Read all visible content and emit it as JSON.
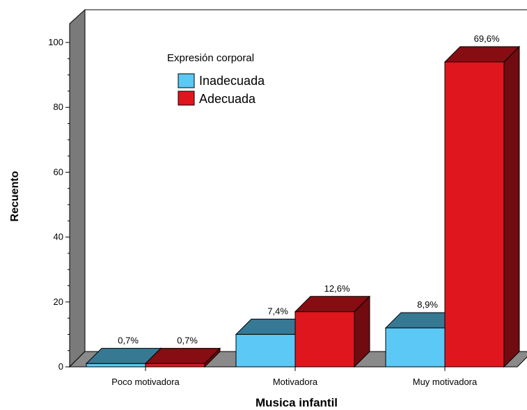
{
  "chart_data": {
    "type": "bar",
    "style": "3d-clustered",
    "xlabel": "Musica infantil",
    "ylabel": "Recuento",
    "ylim": [
      0,
      100
    ],
    "yticks": [
      0,
      20,
      40,
      60,
      80,
      100
    ],
    "categories": [
      "Poco motivadora",
      "Motivadora",
      "Muy motivadora"
    ],
    "legend_title": "Expresión corporal",
    "legend_position": "top-left",
    "grid": false,
    "series": [
      {
        "name": "Inadecuada",
        "color": "#5bc8f5",
        "values": [
          1,
          10,
          12
        ],
        "labels": [
          "0,7%",
          "7,4%",
          "8,9%"
        ]
      },
      {
        "name": "Adecuada",
        "color": "#e0161e",
        "values": [
          1,
          17,
          94
        ],
        "labels": [
          "0,7%",
          "12,6%",
          "69,6%"
        ]
      }
    ]
  }
}
